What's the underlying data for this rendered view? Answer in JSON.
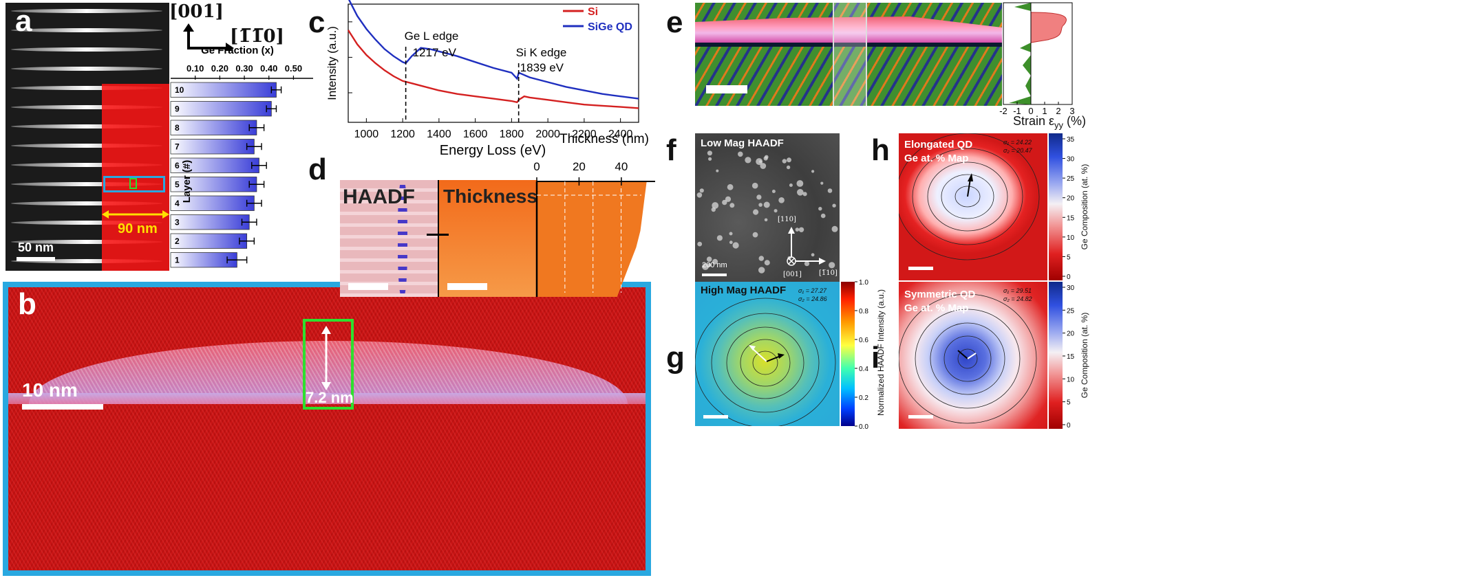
{
  "panels": {
    "a": {
      "label": "a",
      "direction_001": "[001]",
      "direction_110": "[1̅ 1̅ 0]",
      "direction_110_display": "[1̅1̅0]",
      "width_label": "90 nm",
      "scale_label": "50 nm"
    },
    "b": {
      "label": "b",
      "scale_label": "10 nm",
      "height_label": "7.2 nm"
    },
    "c": {
      "label": "c"
    },
    "d": {
      "label": "d",
      "haadf_label": "HAADF",
      "thickness_label": "Thickness"
    },
    "e": {
      "label": "e",
      "strain_label": "Strain ε",
      "strain_sub": "yy",
      "strain_unit": " (%)"
    },
    "f": {
      "label": "f",
      "title": "Low Mag HAADF",
      "scale_label": "200 nm",
      "dir_up": "[110]",
      "dir_right": "[1̅10]",
      "dir_out": "[001]"
    },
    "g": {
      "label": "g",
      "title": "High Mag HAADF",
      "sigma1": "σ₁ = 27.27",
      "sigma2": "σ₂ = 24.86",
      "colorbar_label": "Normalized HAADF Intensity (a.u.)"
    },
    "h": {
      "label": "h",
      "title_line1": "Elongated QD",
      "title_line2": "Ge at. % Map",
      "sigma1": "σ₁ = 24.22",
      "sigma2": "σ₂ = 20.47",
      "colorbar_label": "Ge Composition (at. %)"
    },
    "i": {
      "label": "i",
      "title_line1": "Symmetric QD",
      "title_line2": "Ge at. % Map",
      "sigma1": "σ₁ = 29.51",
      "sigma2": "σ₂ = 24.82",
      "colorbar_label": "Ge Composition (at. %)"
    }
  },
  "chart_data": [
    {
      "id": "panel-a-bar",
      "type": "bar",
      "orientation": "horizontal",
      "title": "Ge Fraction (x)",
      "ylabel": "Layer (#)",
      "categories": [
        "10",
        "9",
        "8",
        "7",
        "6",
        "5",
        "4",
        "3",
        "2",
        "1"
      ],
      "values": [
        0.43,
        0.41,
        0.35,
        0.34,
        0.36,
        0.35,
        0.34,
        0.32,
        0.31,
        0.27
      ],
      "errors": [
        0.02,
        0.02,
        0.03,
        0.03,
        0.03,
        0.03,
        0.03,
        0.03,
        0.03,
        0.04
      ],
      "xticks": [
        "0.10",
        "0.20",
        "0.30",
        "0.40",
        "0.50"
      ],
      "xtick_values": [
        0.1,
        0.2,
        0.3,
        0.4,
        0.5
      ],
      "xlim": [
        0.0,
        0.58
      ]
    },
    {
      "id": "panel-c-eels",
      "type": "line",
      "xlabel": "Energy Loss (eV)",
      "ylabel": "Intensity (a.u.)",
      "xlim": [
        900,
        2500
      ],
      "ylim": [
        0,
        1
      ],
      "xticks": [
        "1000",
        "1200",
        "1400",
        "1600",
        "1800",
        "2000",
        "2200",
        "2400"
      ],
      "xtick_values": [
        1000,
        1200,
        1400,
        1600,
        1800,
        2000,
        2200,
        2400
      ],
      "legend_position": "top-right",
      "series": [
        {
          "name": "Si",
          "color": "#d42020",
          "x": [
            900,
            950,
            1000,
            1050,
            1100,
            1150,
            1200,
            1250,
            1300,
            1400,
            1500,
            1600,
            1700,
            1800,
            1830,
            1840,
            1870,
            1900,
            2000,
            2100,
            2200,
            2300,
            2400,
            2500
          ],
          "y": [
            0.78,
            0.66,
            0.57,
            0.5,
            0.44,
            0.39,
            0.35,
            0.33,
            0.31,
            0.27,
            0.24,
            0.22,
            0.2,
            0.18,
            0.17,
            0.19,
            0.22,
            0.21,
            0.19,
            0.17,
            0.15,
            0.14,
            0.13,
            0.12
          ]
        },
        {
          "name": "SiGe QD",
          "color": "#1f2fbf",
          "x": [
            900,
            950,
            1000,
            1050,
            1100,
            1150,
            1200,
            1217,
            1250,
            1300,
            1350,
            1400,
            1450,
            1500,
            1600,
            1700,
            1800,
            1830,
            1840,
            1870,
            1900,
            2000,
            2100,
            2200,
            2300,
            2400,
            2500
          ],
          "y": [
            1.05,
            0.9,
            0.79,
            0.7,
            0.62,
            0.56,
            0.51,
            0.5,
            0.56,
            0.63,
            0.62,
            0.6,
            0.58,
            0.56,
            0.51,
            0.46,
            0.42,
            0.37,
            0.42,
            0.4,
            0.38,
            0.34,
            0.3,
            0.27,
            0.24,
            0.22,
            0.2
          ]
        }
      ],
      "annotations": [
        {
          "text_line1": "Ge L edge",
          "text_line2": "1217 eV",
          "x": 1217
        },
        {
          "text_line1": "Si K edge",
          "text_line2": "1839 eV",
          "x": 1839
        }
      ]
    },
    {
      "id": "panel-d-thickness",
      "type": "area",
      "xlabel": "Thickness (nm)",
      "xticks": [
        "0",
        "20",
        "40"
      ],
      "xtick_values": [
        0,
        20,
        40
      ],
      "xlim": [
        0,
        56
      ],
      "values": [
        52,
        51,
        50,
        49,
        47,
        44,
        41,
        38
      ],
      "color": "#f07820"
    },
    {
      "id": "panel-e-strain",
      "type": "area",
      "xlabel": "Strain εyy (%)",
      "xticks": [
        "-2",
        "-1",
        "0",
        "1",
        "2",
        "3"
      ],
      "xtick_values": [
        -2,
        -1,
        0,
        1,
        2,
        3
      ],
      "xlim": [
        -2,
        3
      ]
    },
    {
      "id": "panel-g-colorbar",
      "type": "colorbar",
      "ticks": [
        "1.0",
        "0.8",
        "0.6",
        "0.4",
        "0.2",
        "0.0"
      ]
    },
    {
      "id": "panel-h-colorbar",
      "type": "colorbar",
      "ticks": [
        "35",
        "30",
        "25",
        "20",
        "15",
        "10",
        "5",
        "0"
      ]
    },
    {
      "id": "panel-i-colorbar",
      "type": "colorbar",
      "ticks": [
        "30",
        "25",
        "20",
        "15",
        "10",
        "5",
        "0"
      ]
    }
  ]
}
